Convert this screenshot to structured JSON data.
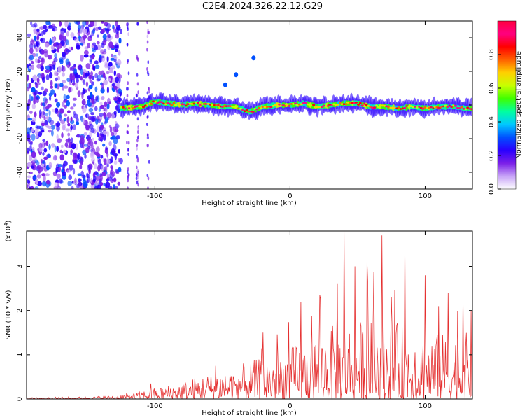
{
  "title": "C2E4.2024.326.22.12.G29",
  "chart_data": [
    {
      "type": "heatmap",
      "xlabel": "Height of straight line (km)",
      "ylabel": "Frequency (Hz)",
      "xlim": [
        -195,
        135
      ],
      "ylim": [
        -50,
        50
      ],
      "x_ticks": [
        -100,
        0,
        100
      ],
      "y_ticks": [
        -40,
        -20,
        0,
        20,
        40
      ],
      "colorbar": {
        "label": "Normalized spectral amplitude",
        "range": [
          0,
          1
        ],
        "ticks": [
          "0.0",
          "0.2",
          "0.4",
          "0.6",
          "0.8"
        ],
        "colors": [
          "#ffffff",
          "#c7a3f7",
          "#7a1fe8",
          "#2a00ff",
          "#0050ff",
          "#00c8ff",
          "#00ffa0",
          "#40ff00",
          "#c8ff00",
          "#ffd000",
          "#ff6000",
          "#ff0000",
          "#ff0080",
          "#ff0040"
        ]
      },
      "ridge": {
        "x": [
          -125,
          -110,
          -100,
          -90,
          -80,
          -70,
          -60,
          -50,
          -40,
          -30,
          -20,
          -10,
          0,
          10,
          20,
          30,
          40,
          50,
          60,
          70,
          80,
          90,
          100,
          110,
          120,
          130
        ],
        "y": [
          -2,
          -1,
          2,
          1,
          0,
          1,
          0,
          -1,
          -1,
          -4,
          -1,
          0,
          0,
          1,
          -1,
          0,
          1,
          1,
          -1,
          -1,
          -2,
          -1,
          -2,
          -1,
          -1,
          -2
        ]
      },
      "streak": [
        {
          "x": -48,
          "y": 12
        },
        {
          "x": -40,
          "y": 18
        },
        {
          "x": -27,
          "y": 28
        }
      ]
    },
    {
      "type": "line",
      "xlabel": "Height of straight line (km)",
      "ylabel": "SNR (10 * v/v)",
      "y_multiplier": "(x10",
      "y_multiplier_exp": "4",
      "xlim": [
        -195,
        135
      ],
      "ylim": [
        0,
        3.8
      ],
      "x_ticks": [
        -100,
        0,
        100
      ],
      "y_ticks": [
        0,
        1,
        2,
        3
      ],
      "color": "#e53030",
      "envelope": {
        "x": [
          -195,
          -150,
          -130,
          -115,
          -100,
          -85,
          -75,
          -65,
          -55,
          -45,
          -35,
          -25,
          -15,
          -5,
          5,
          15,
          25,
          35,
          45,
          55,
          65,
          75,
          85,
          95,
          105,
          115,
          125,
          135
        ],
        "y": [
          0.03,
          0.05,
          0.08,
          0.15,
          0.25,
          0.35,
          0.45,
          0.55,
          0.65,
          0.75,
          0.8,
          0.9,
          1.0,
          1.1,
          1.25,
          1.4,
          1.6,
          1.7,
          1.8,
          1.8,
          1.8,
          1.75,
          1.7,
          1.6,
          1.5,
          1.5,
          1.5,
          1.5
        ]
      },
      "peaks": [
        {
          "x": -103,
          "y": 0.35
        },
        {
          "x": -55,
          "y": 0.75
        },
        {
          "x": -20,
          "y": 1.5
        },
        {
          "x": 8,
          "y": 2.2
        },
        {
          "x": 22,
          "y": 2.35
        },
        {
          "x": 35,
          "y": 2.6
        },
        {
          "x": 40,
          "y": 3.8
        },
        {
          "x": 48,
          "y": 3.0
        },
        {
          "x": 57,
          "y": 3.1
        },
        {
          "x": 68,
          "y": 3.7
        },
        {
          "x": 75,
          "y": 2.3
        },
        {
          "x": 85,
          "y": 3.5
        },
        {
          "x": 100,
          "y": 2.8
        },
        {
          "x": 110,
          "y": 2.1
        },
        {
          "x": 117,
          "y": 2.4
        },
        {
          "x": 128,
          "y": 2.3
        },
        {
          "x": 134,
          "y": 2.0
        }
      ]
    }
  ]
}
